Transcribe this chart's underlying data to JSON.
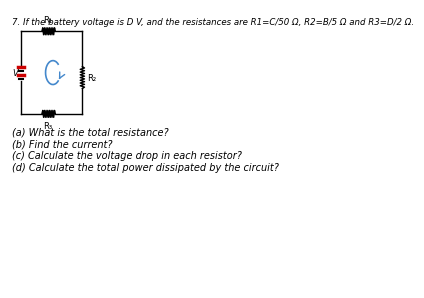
{
  "title_text": "7. If the battery voltage is D V, and the resistances are R1=C/50 Ω, R2=B/5 Ω and R3=D/2 Ω.",
  "title_fontsize": 6.2,
  "questions": [
    "(a) What is the total resistance?",
    "(b) Find the current?",
    "(c) Calculate the voltage drop in each resistor?",
    "(d) Calculate the total power dissipated by the circuit?"
  ],
  "question_fontsize": 7.0,
  "bg_color": "#ffffff",
  "text_color": "#000000",
  "circuit_color": "#000000",
  "battery_red": "#cc0000",
  "arrow_color": "#4488cc",
  "label_r1": "R₁",
  "label_r2": "R₂",
  "label_r3": "R₃",
  "label_v": "V"
}
